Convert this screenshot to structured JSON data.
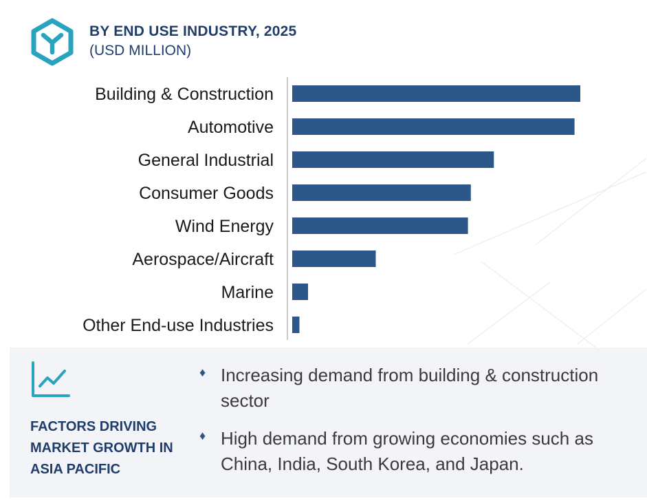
{
  "header": {
    "logo_icon": "hexagon-y-logo-icon",
    "title": "BY END USE INDUSTRY, 2025",
    "subtitle": "(USD MILLION)"
  },
  "chart_data": {
    "type": "bar",
    "orientation": "horizontal",
    "title": "BY END USE INDUSTRY, 2025",
    "subtitle": "(USD MILLION)",
    "categories": [
      "Building & Construction",
      "Automotive",
      "General Industrial",
      "Consumer Goods",
      "Wind Energy",
      "Aerospace/Aircraft",
      "Marine",
      "Other End-use Industries"
    ],
    "values": [
      100,
      98,
      70,
      62,
      61,
      29,
      5.5,
      2.5
    ],
    "value_note": "relative bar lengths; no numeric axis shown",
    "xlim": [
      0,
      100
    ],
    "grid": false,
    "legend": "none",
    "bar_color": "#2b5789"
  },
  "panel": {
    "icon": "growth-chart-icon",
    "title": "FACTORS DRIVING MARKET GROWTH IN ASIA PACIFIC",
    "bullet_icon": "diamond-bullet-icon",
    "bullets": [
      "Increasing demand from building & construction sector",
      "High demand from growing economies such as China, India, South Korea, and Japan."
    ]
  },
  "colors": {
    "accent": "#1f3d6b",
    "bar": "#2b5789",
    "icon_teal": "#2aa3bf",
    "panel_bg": "#f3f4f8"
  }
}
